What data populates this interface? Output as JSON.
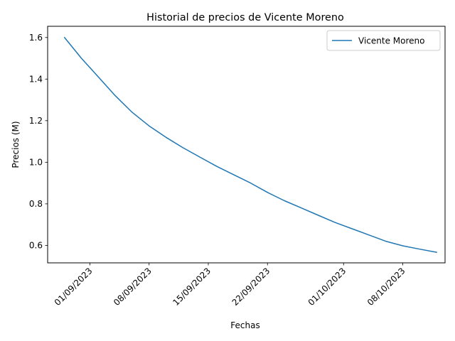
{
  "chart_data": {
    "type": "line",
    "title": "Historial de precios de Vicente Moreno",
    "xlabel": "Fechas",
    "ylabel": "Precios (M)",
    "x_tick_labels": [
      "01/09/2023",
      "08/09/2023",
      "15/09/2023",
      "22/09/2023",
      "01/10/2023",
      "08/10/2023"
    ],
    "x_tick_dates": [
      "2023-09-01",
      "2023-09-08",
      "2023-09-15",
      "2023-09-22",
      "2023-10-01",
      "2023-10-08"
    ],
    "xlim": [
      "2023-08-27",
      "2023-10-13"
    ],
    "y_ticks": [
      0.6,
      0.8,
      1.0,
      1.2,
      1.4,
      1.6
    ],
    "y_tick_labels": [
      "0.6",
      "0.8",
      "1.0",
      "1.2",
      "1.4",
      "1.6"
    ],
    "ylim": [
      0.516,
      1.654
    ],
    "grid": false,
    "legend_position": "upper-right",
    "series": [
      {
        "name": "Vicente Moreno",
        "color": "#1f77b4",
        "points": [
          {
            "x": "2023-08-29",
            "y": 1.6
          },
          {
            "x": "2023-08-31",
            "y": 1.5
          },
          {
            "x": "2023-09-02",
            "y": 1.41
          },
          {
            "x": "2023-09-04",
            "y": 1.32
          },
          {
            "x": "2023-09-06",
            "y": 1.24
          },
          {
            "x": "2023-09-08",
            "y": 1.175
          },
          {
            "x": "2023-09-10",
            "y": 1.12
          },
          {
            "x": "2023-09-12",
            "y": 1.07
          },
          {
            "x": "2023-09-14",
            "y": 1.025
          },
          {
            "x": "2023-09-16",
            "y": 0.98
          },
          {
            "x": "2023-09-18",
            "y": 0.94
          },
          {
            "x": "2023-09-20",
            "y": 0.9
          },
          {
            "x": "2023-09-22",
            "y": 0.855
          },
          {
            "x": "2023-09-24",
            "y": 0.815
          },
          {
            "x": "2023-09-26",
            "y": 0.78
          },
          {
            "x": "2023-09-28",
            "y": 0.745
          },
          {
            "x": "2023-09-30",
            "y": 0.71
          },
          {
            "x": "2023-10-02",
            "y": 0.68
          },
          {
            "x": "2023-10-04",
            "y": 0.65
          },
          {
            "x": "2023-10-06",
            "y": 0.62
          },
          {
            "x": "2023-10-08",
            "y": 0.598
          },
          {
            "x": "2023-10-10",
            "y": 0.582
          },
          {
            "x": "2023-10-12",
            "y": 0.567
          }
        ]
      }
    ]
  }
}
